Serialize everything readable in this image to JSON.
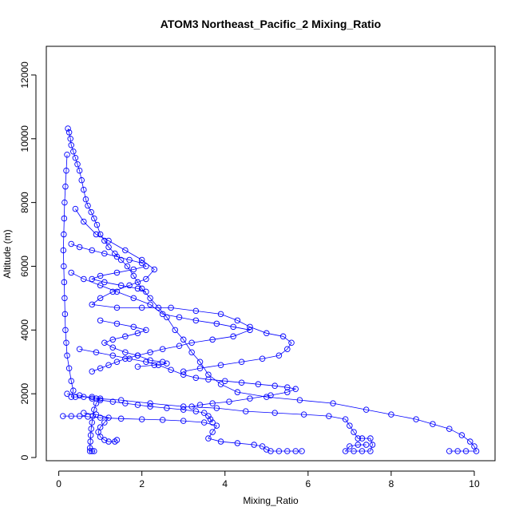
{
  "chart_data": {
    "type": "scatter",
    "title": "ATOM3 Northeast_Pacific_2 Mixing_Ratio",
    "xlabel": "Mixing_Ratio",
    "ylabel": "Altitude (m)",
    "xlim": [
      -0.3,
      10.5
    ],
    "ylim": [
      -100,
      12900
    ],
    "xticks": [
      0,
      2,
      4,
      6,
      8,
      10
    ],
    "yticks": [
      0,
      2000,
      4000,
      6000,
      8000,
      10000,
      12000
    ],
    "grid": false,
    "marker": "open-circle",
    "connected": true,
    "color": "#0000ff",
    "series": [
      {
        "points": [
          [
            0.22,
            10320
          ],
          [
            0.25,
            10200
          ],
          [
            0.28,
            10000
          ],
          [
            0.3,
            9800
          ],
          [
            0.35,
            9600
          ],
          [
            0.4,
            9400
          ],
          [
            0.45,
            9200
          ],
          [
            0.5,
            9000
          ],
          [
            0.55,
            8700
          ],
          [
            0.6,
            8400
          ],
          [
            0.65,
            8100
          ],
          [
            0.7,
            7900
          ],
          [
            0.78,
            7700
          ],
          [
            0.85,
            7500
          ],
          [
            0.92,
            7300
          ],
          [
            1.0,
            7000
          ],
          [
            1.1,
            6800
          ],
          [
            1.2,
            6600
          ],
          [
            1.35,
            6400
          ],
          [
            1.5,
            6200
          ],
          [
            1.65,
            6000
          ],
          [
            1.8,
            5700
          ],
          [
            1.9,
            5500
          ],
          [
            2.0,
            5300
          ],
          [
            2.2,
            5000
          ],
          [
            2.4,
            4700
          ],
          [
            2.6,
            4400
          ],
          [
            2.8,
            4000
          ],
          [
            3.0,
            3700
          ],
          [
            3.2,
            3300
          ],
          [
            3.4,
            3000
          ],
          [
            3.6,
            2600
          ],
          [
            3.9,
            2300
          ],
          [
            4.3,
            2050
          ],
          [
            5.0,
            1900
          ],
          [
            5.8,
            1800
          ],
          [
            6.6,
            1700
          ],
          [
            7.4,
            1500
          ],
          [
            8.0,
            1350
          ],
          [
            8.6,
            1200
          ],
          [
            9.0,
            1050
          ],
          [
            9.4,
            900
          ],
          [
            9.7,
            700
          ],
          [
            9.9,
            500
          ],
          [
            10.0,
            350
          ],
          [
            10.05,
            200
          ],
          [
            9.8,
            200
          ],
          [
            9.6,
            200
          ],
          [
            9.4,
            200
          ]
        ]
      },
      {
        "points": [
          [
            0.2,
            9500
          ],
          [
            0.18,
            9000
          ],
          [
            0.16,
            8500
          ],
          [
            0.14,
            8000
          ],
          [
            0.13,
            7500
          ],
          [
            0.12,
            7000
          ],
          [
            0.11,
            6500
          ],
          [
            0.12,
            6000
          ],
          [
            0.13,
            5500
          ],
          [
            0.14,
            5000
          ],
          [
            0.15,
            4500
          ],
          [
            0.16,
            4000
          ],
          [
            0.18,
            3600
          ],
          [
            0.2,
            3200
          ],
          [
            0.25,
            2800
          ],
          [
            0.3,
            2400
          ],
          [
            0.35,
            2100
          ],
          [
            0.3,
            1900
          ],
          [
            0.4,
            1900
          ],
          [
            0.6,
            1900
          ],
          [
            0.8,
            1900
          ],
          [
            1.0,
            1850
          ],
          [
            0.9,
            1700
          ],
          [
            0.85,
            1500
          ],
          [
            0.82,
            1300
          ],
          [
            0.8,
            1100
          ],
          [
            0.78,
            900
          ],
          [
            0.77,
            700
          ],
          [
            0.76,
            500
          ],
          [
            0.75,
            300
          ],
          [
            0.75,
            200
          ],
          [
            0.8,
            200
          ],
          [
            0.85,
            200
          ]
        ]
      },
      {
        "points": [
          [
            0.1,
            1300
          ],
          [
            0.3,
            1300
          ],
          [
            0.5,
            1300
          ],
          [
            0.7,
            1280
          ],
          [
            1.0,
            1250
          ],
          [
            1.5,
            1220
          ],
          [
            2.0,
            1200
          ],
          [
            2.5,
            1180
          ],
          [
            3.0,
            1150
          ],
          [
            3.5,
            1100
          ],
          [
            3.8,
            1000
          ],
          [
            3.7,
            800
          ],
          [
            3.6,
            600
          ],
          [
            3.9,
            500
          ],
          [
            4.3,
            450
          ],
          [
            4.7,
            400
          ],
          [
            4.9,
            350
          ],
          [
            5.0,
            250
          ],
          [
            5.1,
            200
          ],
          [
            5.3,
            200
          ],
          [
            5.5,
            200
          ],
          [
            5.7,
            200
          ],
          [
            5.85,
            200
          ]
        ]
      },
      {
        "points": [
          [
            0.9,
            1850
          ],
          [
            1.5,
            1800
          ],
          [
            2.2,
            1700
          ],
          [
            3.0,
            1600
          ],
          [
            3.8,
            1550
          ],
          [
            4.5,
            1450
          ],
          [
            5.2,
            1400
          ],
          [
            5.9,
            1350
          ],
          [
            6.5,
            1300
          ],
          [
            6.9,
            1200
          ],
          [
            7.0,
            1000
          ],
          [
            7.1,
            800
          ],
          [
            7.2,
            600
          ],
          [
            7.3,
            600
          ],
          [
            7.5,
            600
          ],
          [
            7.55,
            400
          ],
          [
            7.5,
            200
          ],
          [
            7.3,
            200
          ],
          [
            7.1,
            200
          ],
          [
            6.9,
            200
          ],
          [
            7.0,
            350
          ],
          [
            7.2,
            400
          ],
          [
            7.4,
            400
          ]
        ]
      },
      {
        "points": [
          [
            0.4,
            7800
          ],
          [
            0.6,
            7400
          ],
          [
            0.9,
            7000
          ],
          [
            1.2,
            6800
          ],
          [
            1.6,
            6500
          ],
          [
            2.0,
            6200
          ],
          [
            2.3,
            5900
          ],
          [
            2.1,
            5600
          ],
          [
            1.7,
            5400
          ],
          [
            1.3,
            5200
          ],
          [
            1.0,
            5000
          ],
          [
            0.8,
            4800
          ],
          [
            1.4,
            4700
          ],
          [
            2.0,
            4700
          ],
          [
            2.7,
            4700
          ],
          [
            3.3,
            4600
          ],
          [
            3.9,
            4500
          ],
          [
            4.3,
            4300
          ],
          [
            4.6,
            4100
          ],
          [
            5.0,
            3900
          ],
          [
            5.4,
            3800
          ],
          [
            5.6,
            3600
          ],
          [
            5.5,
            3400
          ],
          [
            5.3,
            3200
          ],
          [
            4.9,
            3100
          ],
          [
            4.4,
            3000
          ],
          [
            3.9,
            2900
          ],
          [
            3.4,
            2800
          ],
          [
            3.0,
            2700
          ]
        ]
      },
      {
        "points": [
          [
            0.3,
            5800
          ],
          [
            0.6,
            5600
          ],
          [
            1.0,
            5400
          ],
          [
            1.4,
            5200
          ],
          [
            1.8,
            5000
          ],
          [
            2.2,
            4800
          ],
          [
            2.5,
            4500
          ],
          [
            2.9,
            4400
          ],
          [
            3.3,
            4300
          ],
          [
            3.8,
            4200
          ],
          [
            4.2,
            4100
          ],
          [
            4.6,
            4000
          ],
          [
            4.2,
            3800
          ],
          [
            3.7,
            3700
          ],
          [
            3.2,
            3600
          ],
          [
            2.9,
            3500
          ],
          [
            2.5,
            3400
          ],
          [
            2.2,
            3300
          ],
          [
            1.9,
            3200
          ],
          [
            1.6,
            3100
          ],
          [
            1.4,
            3000
          ],
          [
            1.2,
            2900
          ],
          [
            1.0,
            2800
          ],
          [
            0.8,
            2700
          ]
        ]
      },
      {
        "points": [
          [
            0.5,
            3400
          ],
          [
            0.9,
            3300
          ],
          [
            1.3,
            3200
          ],
          [
            1.7,
            3100
          ],
          [
            2.1,
            3000
          ],
          [
            2.4,
            2900
          ],
          [
            2.7,
            2750
          ],
          [
            3.0,
            2600
          ],
          [
            3.3,
            2500
          ],
          [
            3.6,
            2450
          ],
          [
            4.0,
            2400
          ],
          [
            4.4,
            2350
          ],
          [
            4.8,
            2300
          ],
          [
            5.2,
            2250
          ],
          [
            5.5,
            2200
          ],
          [
            5.7,
            2150
          ],
          [
            5.5,
            2050
          ],
          [
            5.1,
            1950
          ],
          [
            4.6,
            1850
          ],
          [
            4.1,
            1750
          ],
          [
            3.7,
            1700
          ],
          [
            3.4,
            1650
          ],
          [
            3.2,
            1600
          ]
        ]
      },
      {
        "points": [
          [
            0.2,
            2000
          ],
          [
            0.5,
            1950
          ],
          [
            0.8,
            1850
          ],
          [
            1.0,
            1800
          ],
          [
            1.3,
            1750
          ],
          [
            1.6,
            1700
          ],
          [
            1.9,
            1650
          ],
          [
            2.2,
            1600
          ],
          [
            2.6,
            1550
          ],
          [
            3.0,
            1500
          ],
          [
            3.3,
            1450
          ],
          [
            3.5,
            1400
          ],
          [
            3.6,
            1300
          ],
          [
            3.65,
            1200
          ],
          [
            3.7,
            1100
          ]
        ]
      },
      {
        "points": [
          [
            0.6,
            1400
          ],
          [
            0.9,
            1350
          ],
          [
            1.2,
            1250
          ],
          [
            1.1,
            1100
          ],
          [
            1.0,
            950
          ],
          [
            0.95,
            800
          ],
          [
            1.0,
            650
          ],
          [
            1.1,
            550
          ],
          [
            1.2,
            500
          ],
          [
            1.35,
            500
          ],
          [
            1.4,
            550
          ]
        ]
      },
      {
        "points": [
          [
            1.0,
            4300
          ],
          [
            1.4,
            4200
          ],
          [
            1.8,
            4100
          ],
          [
            2.1,
            4000
          ],
          [
            1.9,
            3900
          ],
          [
            1.6,
            3800
          ],
          [
            1.3,
            3700
          ],
          [
            1.1,
            3600
          ],
          [
            1.3,
            3450
          ],
          [
            1.6,
            3300
          ],
          [
            1.9,
            3200
          ],
          [
            2.2,
            3050
          ],
          [
            2.5,
            3000
          ],
          [
            2.6,
            2950
          ],
          [
            2.3,
            2900
          ],
          [
            1.9,
            2850
          ]
        ]
      },
      {
        "points": [
          [
            0.3,
            6700
          ],
          [
            0.5,
            6600
          ],
          [
            0.8,
            6500
          ],
          [
            1.1,
            6400
          ],
          [
            1.4,
            6300
          ],
          [
            1.7,
            6200
          ],
          [
            2.0,
            6100
          ],
          [
            2.1,
            6000
          ],
          [
            1.8,
            5900
          ],
          [
            1.4,
            5800
          ],
          [
            1.0,
            5700
          ],
          [
            0.8,
            5600
          ],
          [
            1.1,
            5500
          ],
          [
            1.5,
            5400
          ],
          [
            1.9,
            5300
          ],
          [
            2.1,
            5200
          ]
        ]
      }
    ]
  }
}
